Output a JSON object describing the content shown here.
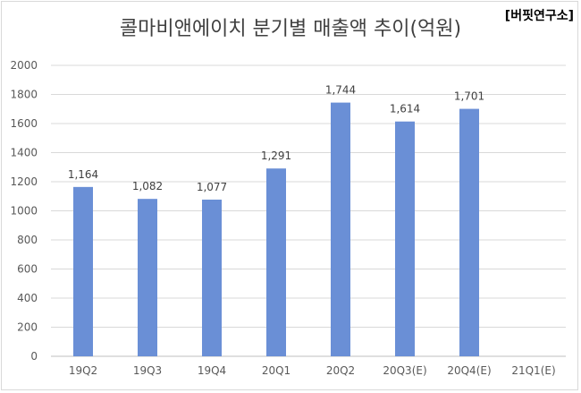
{
  "header": {
    "title": "콜마비앤에이치 분기별 매출액 추이(억원)",
    "source": "[버핏연구소]"
  },
  "colors": {
    "bar": "#6a8fd6",
    "gridline": "#d9d9d9",
    "axis": "#bfbfbf"
  },
  "chart_data": {
    "type": "bar",
    "title": "콜마비앤에이치 분기별 매출액 추이(억원)",
    "categories": [
      "19Q2",
      "19Q3",
      "19Q4",
      "20Q1",
      "20Q2",
      "20Q3(E)",
      "20Q4(E)",
      "21Q1(E)"
    ],
    "values": [
      1164,
      1082,
      1077,
      1291,
      1744,
      1614,
      1701,
      null
    ],
    "data_labels": [
      "1,164",
      "1,082",
      "1,077",
      "1,291",
      "1,744",
      "1,614",
      "1,701",
      ""
    ],
    "ylim": [
      0,
      2000
    ],
    "yticks": [
      0,
      200,
      400,
      600,
      800,
      1000,
      1200,
      1400,
      1600,
      1800,
      2000
    ],
    "xlabel": "",
    "ylabel": "",
    "grid": true,
    "legend": "none"
  }
}
